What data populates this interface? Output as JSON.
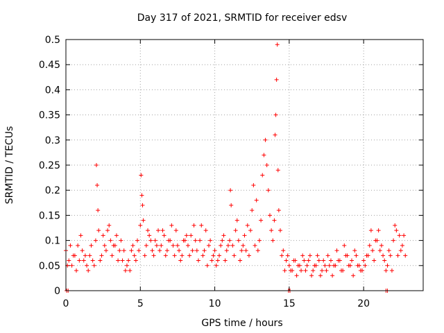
{
  "chart_data": {
    "type": "scatter",
    "title": "Day 317 of 2021, SRMTID for receiver edsv",
    "xlabel": "GPS time / hours",
    "ylabel": "SRMTID / TECUs",
    "xlim": [
      0,
      24
    ],
    "ylim": [
      0,
      0.5
    ],
    "grid": true,
    "marker": "+",
    "color": "#ff0000",
    "x_ticks": [
      {
        "value": 0,
        "label": "0"
      },
      {
        "value": 5,
        "label": "5"
      },
      {
        "value": 10,
        "label": "10"
      },
      {
        "value": 15,
        "label": "15"
      },
      {
        "value": 20,
        "label": "20"
      }
    ],
    "y_ticks": [
      {
        "value": 0,
        "label": "0"
      },
      {
        "value": 0.05,
        "label": "0.05"
      },
      {
        "value": 0.1,
        "label": "0.1"
      },
      {
        "value": 0.15,
        "label": "0.15"
      },
      {
        "value": 0.2,
        "label": "0.2"
      },
      {
        "value": 0.25,
        "label": "0.25"
      },
      {
        "value": 0.3,
        "label": "0.3"
      },
      {
        "value": 0.35,
        "label": "0.35"
      },
      {
        "value": 0.4,
        "label": "0.4"
      },
      {
        "value": 0.45,
        "label": "0.45"
      },
      {
        "value": 0.5,
        "label": "0.5"
      }
    ],
    "series": [
      {
        "name": "SRMTID",
        "x": [
          0.0,
          0.2,
          0.4,
          0.6,
          0.8,
          1.0,
          1.2,
          1.4,
          1.6,
          1.8,
          2.0,
          2.05,
          2.1,
          2.15,
          2.2,
          2.4,
          2.6,
          2.8,
          3.0,
          3.2,
          3.4,
          3.6,
          3.8,
          4.0,
          4.2,
          4.4,
          4.6,
          4.8,
          5.0,
          5.05,
          5.1,
          5.15,
          5.2,
          5.4,
          5.6,
          5.8,
          6.0,
          6.2,
          6.4,
          6.6,
          6.8,
          7.0,
          7.2,
          7.4,
          7.6,
          7.8,
          8.0,
          8.2,
          8.4,
          8.6,
          8.8,
          9.0,
          9.2,
          9.4,
          9.6,
          9.8,
          10.0,
          10.2,
          10.4,
          10.6,
          10.8,
          11.0,
          11.05,
          11.1,
          11.2,
          11.4,
          11.6,
          11.8,
          12.0,
          12.2,
          12.4,
          12.6,
          12.8,
          13.0,
          13.1,
          13.2,
          13.3,
          13.4,
          13.5,
          13.6,
          13.7,
          13.8,
          13.9,
          14.0,
          14.05,
          14.1,
          14.15,
          14.2,
          14.25,
          14.3,
          14.4,
          14.6,
          14.8,
          15.0,
          15.2,
          15.4,
          15.6,
          15.8,
          16.0,
          16.2,
          16.4,
          16.6,
          16.8,
          17.0,
          17.2,
          17.4,
          17.6,
          17.8,
          18.0,
          18.2,
          18.4,
          18.6,
          18.8,
          19.0,
          19.2,
          19.4,
          19.6,
          19.8,
          20.0,
          20.2,
          20.4,
          20.6,
          20.8,
          21.0,
          21.2,
          21.4,
          21.6,
          21.8,
          22.0,
          22.2,
          22.4,
          22.6,
          22.8
        ],
        "y": [
          0.08,
          0.06,
          0.05,
          0.07,
          0.09,
          0.11,
          0.06,
          0.05,
          0.07,
          0.06,
          0.1,
          0.25,
          0.21,
          0.16,
          0.12,
          0.07,
          0.09,
          0.12,
          0.1,
          0.09,
          0.11,
          0.08,
          0.06,
          0.04,
          0.06,
          0.08,
          0.07,
          0.1,
          0.13,
          0.23,
          0.19,
          0.17,
          0.14,
          0.09,
          0.11,
          0.08,
          0.1,
          0.12,
          0.09,
          0.11,
          0.08,
          0.1,
          0.09,
          0.12,
          0.08,
          0.07,
          0.1,
          0.09,
          0.11,
          0.13,
          0.08,
          0.1,
          0.07,
          0.12,
          0.09,
          0.06,
          0.08,
          0.06,
          0.09,
          0.11,
          0.08,
          0.1,
          0.2,
          0.17,
          0.09,
          0.12,
          0.1,
          0.08,
          0.11,
          0.13,
          0.12,
          0.21,
          0.18,
          0.1,
          0.14,
          0.23,
          0.27,
          0.3,
          0.25,
          0.2,
          0.15,
          0.12,
          0.1,
          0.14,
          0.31,
          0.35,
          0.42,
          0.49,
          0.24,
          0.16,
          0.12,
          0.08,
          0.06,
          0.05,
          0.04,
          0.06,
          0.05,
          0.04,
          0.06,
          0.05,
          0.07,
          0.04,
          0.05,
          0.06,
          0.04,
          0.05,
          0.07,
          0.06,
          0.05,
          0.08,
          0.06,
          0.04,
          0.07,
          0.05,
          0.06,
          0.08,
          0.05,
          0.04,
          0.06,
          0.07,
          0.09,
          0.08,
          0.1,
          0.12,
          0.09,
          0.06,
          0.05,
          0.07,
          0.1,
          0.12,
          0.11,
          0.09,
          0.07
        ]
      }
    ],
    "series_2": [
      {
        "x": [
          0.1,
          0.3,
          0.5,
          0.7,
          0.9,
          1.1,
          1.3,
          1.5,
          1.7,
          1.9,
          2.3,
          2.5,
          2.7,
          2.9,
          3.1,
          3.3,
          3.5,
          3.7,
          3.9,
          4.1,
          4.3,
          4.5,
          4.7,
          4.9,
          5.3,
          5.5,
          5.7,
          5.9,
          6.1,
          6.3,
          6.5,
          6.7,
          6.9,
          7.1,
          7.3,
          7.5,
          7.7,
          7.9,
          8.1,
          8.3,
          8.5,
          8.7,
          8.9,
          9.1,
          9.3,
          9.5,
          9.7,
          9.9,
          10.1,
          10.3,
          10.5,
          10.7,
          10.9,
          11.3,
          11.5,
          11.7,
          11.9,
          12.1,
          12.3,
          12.5,
          12.7,
          12.9,
          14.5,
          14.7,
          14.9,
          15.1,
          15.3,
          15.5,
          15.7,
          15.9,
          16.1,
          16.3,
          16.5,
          16.7,
          16.9,
          17.1,
          17.3,
          17.5,
          17.7,
          17.9,
          18.1,
          18.3,
          18.5,
          18.7,
          18.9,
          19.1,
          19.3,
          19.5,
          19.7,
          19.9,
          20.1,
          20.3,
          20.5,
          20.7,
          20.9,
          21.1,
          21.3,
          21.5,
          21.7,
          21.9,
          22.1,
          22.3,
          22.5,
          22.7
        ],
        "y": [
          0.05,
          0.09,
          0.07,
          0.04,
          0.06,
          0.08,
          0.07,
          0.04,
          0.09,
          0.05,
          0.06,
          0.11,
          0.08,
          0.13,
          0.07,
          0.09,
          0.06,
          0.1,
          0.08,
          0.05,
          0.04,
          0.09,
          0.06,
          0.08,
          0.07,
          0.12,
          0.1,
          0.07,
          0.09,
          0.08,
          0.12,
          0.07,
          0.1,
          0.13,
          0.07,
          0.09,
          0.06,
          0.1,
          0.11,
          0.07,
          0.08,
          0.1,
          0.06,
          0.13,
          0.08,
          0.05,
          0.1,
          0.07,
          0.05,
          0.07,
          0.1,
          0.06,
          0.09,
          0.07,
          0.14,
          0.06,
          0.09,
          0.08,
          0.07,
          0.16,
          0.09,
          0.08,
          0.07,
          0.04,
          0.07,
          0.04,
          0.06,
          0.03,
          0.05,
          0.07,
          0.04,
          0.06,
          0.03,
          0.05,
          0.07,
          0.03,
          0.06,
          0.04,
          0.05,
          0.03,
          0.05,
          0.06,
          0.04,
          0.09,
          0.07,
          0.05,
          0.03,
          0.07,
          0.05,
          0.04,
          0.05,
          0.07,
          0.12,
          0.06,
          0.1,
          0.08,
          0.07,
          0.04,
          0.08,
          0.04,
          0.13,
          0.07,
          0.08,
          0.11
        ]
      }
    ],
    "zero_marks_x": [
      0.05,
      0.15,
      14.95,
      15.05,
      21.5,
      21.6
    ]
  }
}
